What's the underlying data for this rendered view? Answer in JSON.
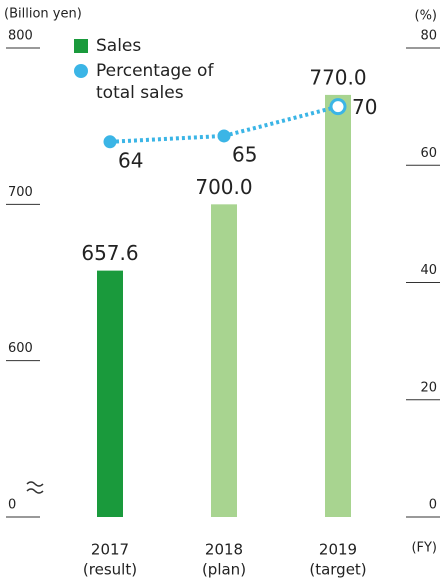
{
  "chart_data": {
    "type": "bar_line",
    "y_label": "(Billion yen)",
    "y2_label": "(%)",
    "x_label": "(FY)",
    "categories": [
      "2017",
      "2018",
      "2019"
    ],
    "category_sublabels": [
      "(result)",
      "(plan)",
      "(target)"
    ],
    "axis_break": true,
    "ylim": [
      0,
      800
    ],
    "yticks": [
      0,
      600,
      700,
      800
    ],
    "y2lim": [
      0,
      80
    ],
    "y2ticks": [
      0,
      20,
      40,
      60,
      80
    ],
    "series": [
      {
        "name": "Sales",
        "type": "bar",
        "color": "#1a9a3c",
        "colors": [
          "#1a9a3c",
          "#a8d490",
          "#a8d490"
        ],
        "values": [
          657.6,
          700.0,
          770.0
        ],
        "value_labels": [
          "657.6",
          "700.0",
          "770.0"
        ]
      },
      {
        "name": "Percentage of total sales",
        "type": "line",
        "axis": "y2",
        "color": "#3bb5e6",
        "values": [
          64,
          65,
          70
        ]
      }
    ]
  }
}
